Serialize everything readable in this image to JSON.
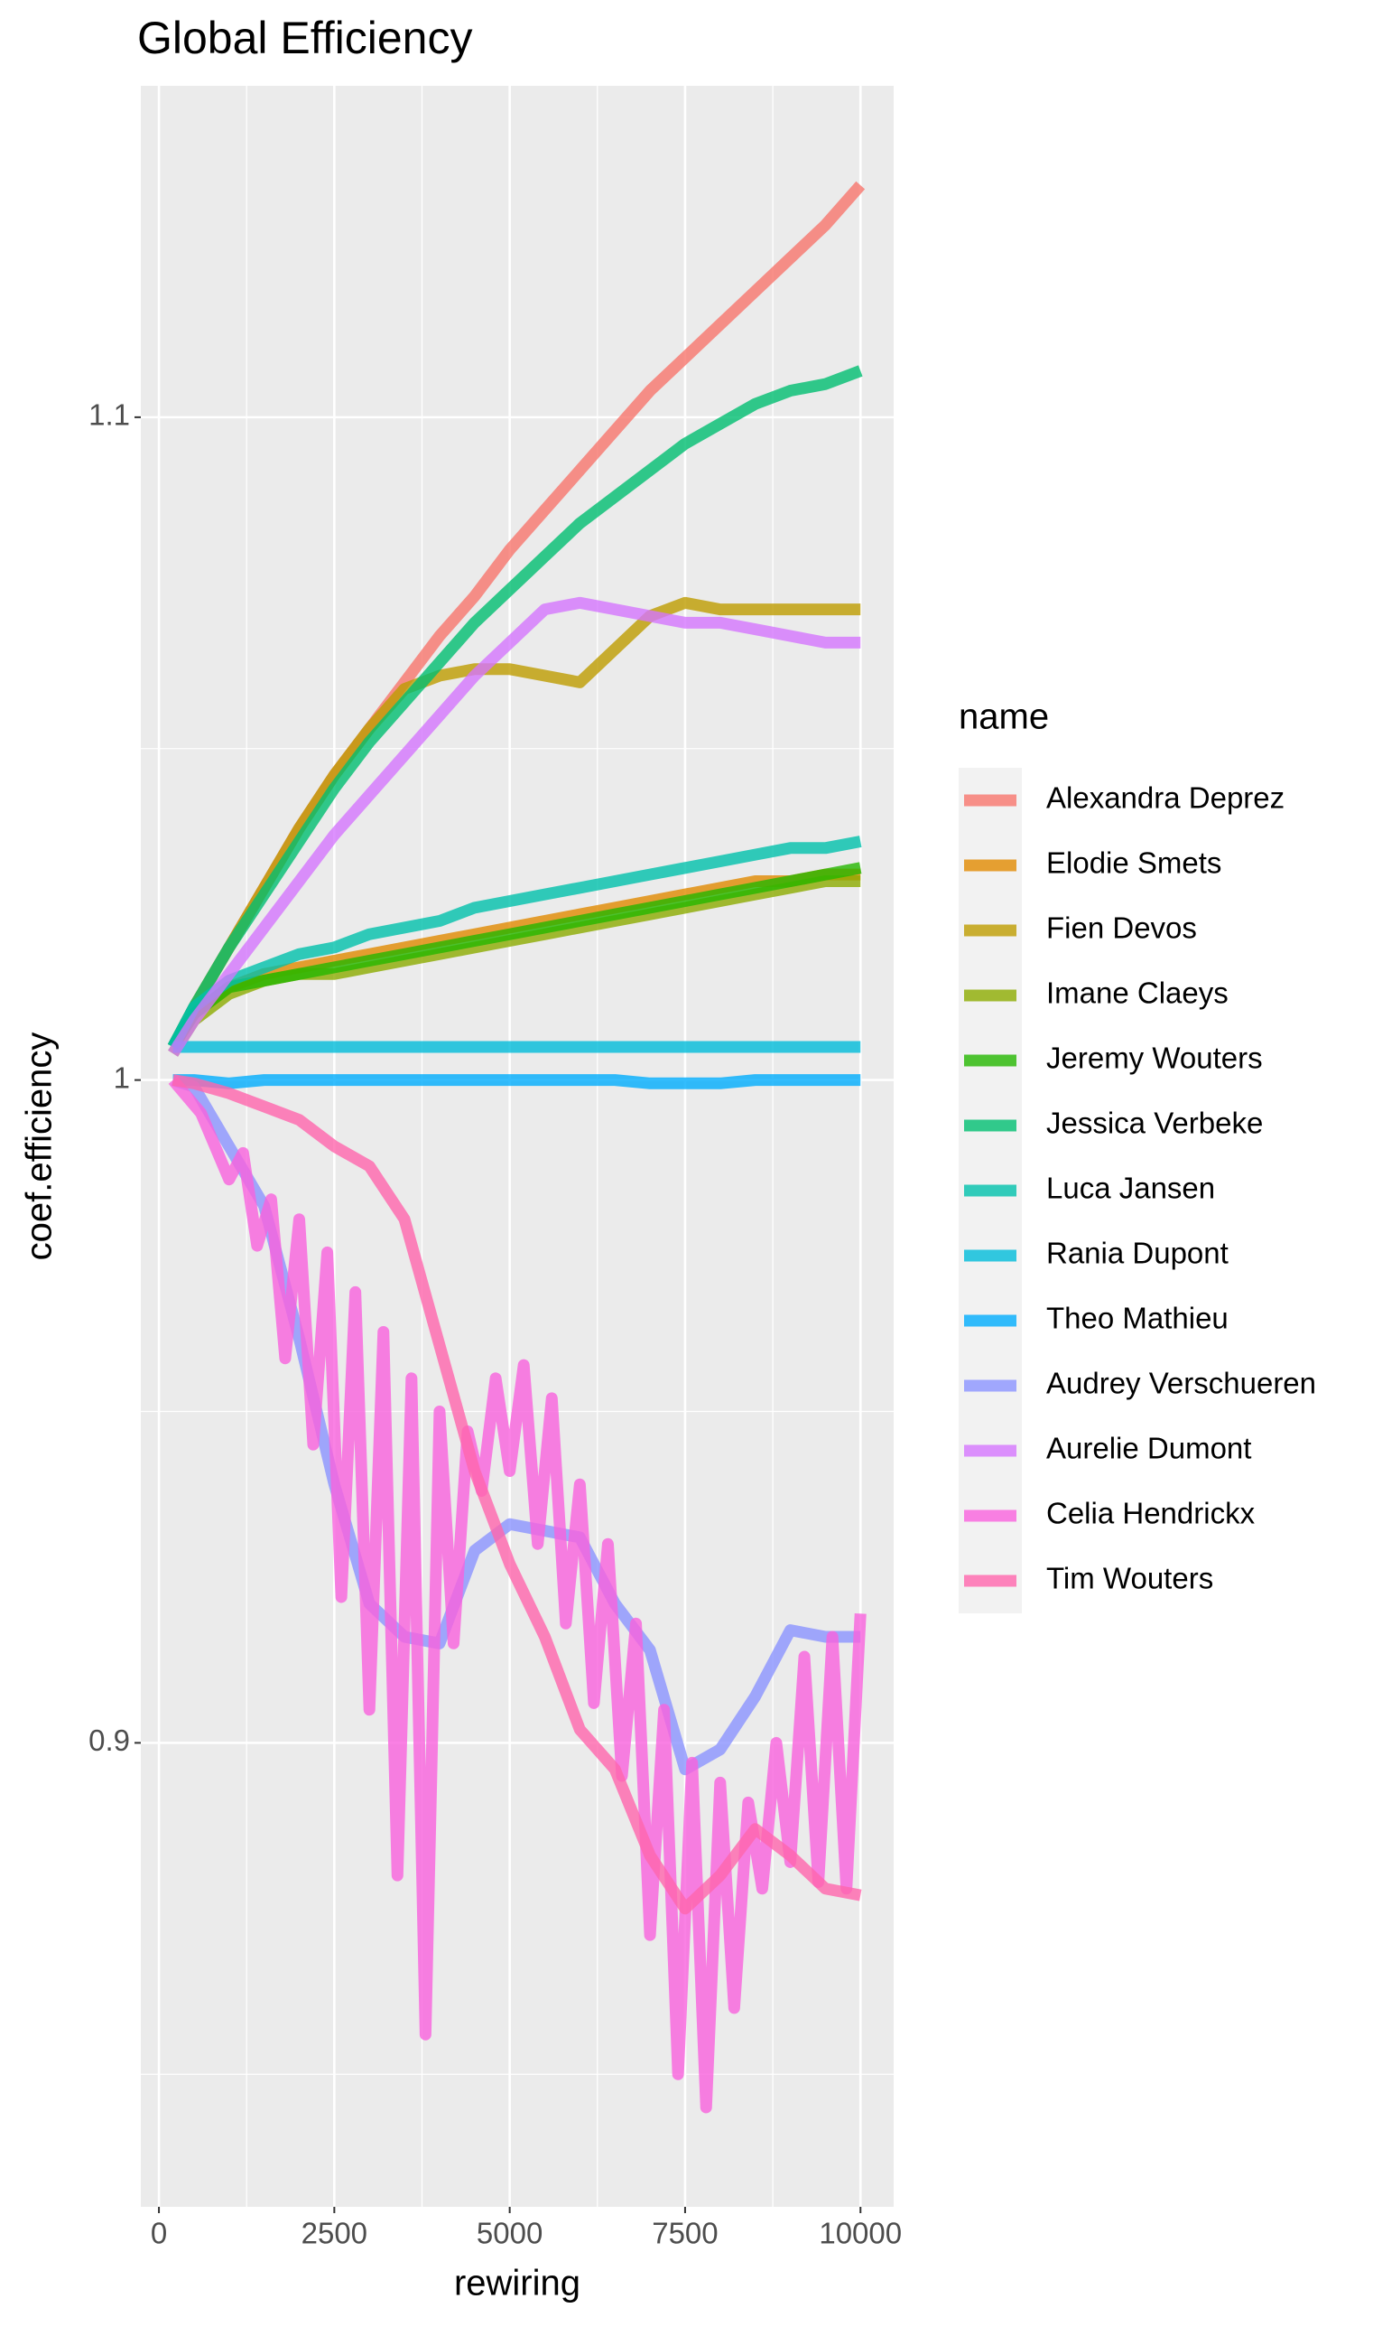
{
  "chart_data": {
    "type": "line",
    "title": "Global Efficiency",
    "x_label": "rewiring",
    "y_label": "coef.efficiency",
    "legend_title": "name",
    "legend": "right",
    "grid": true,
    "minor_grid": true,
    "xlim": [
      -258,
      10473
    ],
    "ylim": [
      0.83,
      1.15
    ],
    "xticks": [
      0,
      2500,
      5000,
      7500,
      10000
    ],
    "yticks": [
      0.9,
      1.0,
      1.1
    ],
    "x": [
      200,
      500,
      1000,
      1500,
      2000,
      2500,
      3000,
      3500,
      4000,
      4500,
      5000,
      5500,
      6000,
      6500,
      7000,
      7500,
      8000,
      8500,
      9000,
      9500,
      10000
    ],
    "series": [
      {
        "name": "Alexandra Deprez",
        "color": "#F8766D",
        "values": [
          1.005,
          1.011,
          1.02,
          1.029,
          1.038,
          1.046,
          1.053,
          1.06,
          1.067,
          1.073,
          1.08,
          1.086,
          1.092,
          1.098,
          1.104,
          1.109,
          1.114,
          1.119,
          1.124,
          1.129,
          1.135
        ]
      },
      {
        "name": "Elodie Smets",
        "color": "#E18A00",
        "values": [
          1.005,
          1.01,
          1.014,
          1.016,
          1.017,
          1.018,
          1.019,
          1.02,
          1.021,
          1.022,
          1.023,
          1.024,
          1.025,
          1.026,
          1.027,
          1.028,
          1.029,
          1.03,
          1.03,
          1.031,
          1.031
        ]
      },
      {
        "name": "Fien Devos",
        "color": "#BE9C00",
        "values": [
          1.005,
          1.011,
          1.02,
          1.029,
          1.038,
          1.046,
          1.053,
          1.059,
          1.061,
          1.062,
          1.062,
          1.061,
          1.06,
          1.065,
          1.07,
          1.072,
          1.071,
          1.071,
          1.071,
          1.071,
          1.071
        ]
      },
      {
        "name": "Imane Claeys",
        "color": "#8CAB00",
        "values": [
          1.004,
          1.009,
          1.013,
          1.015,
          1.016,
          1.016,
          1.017,
          1.018,
          1.019,
          1.02,
          1.021,
          1.022,
          1.023,
          1.024,
          1.025,
          1.026,
          1.027,
          1.028,
          1.029,
          1.03,
          1.03
        ]
      },
      {
        "name": "Jeremy Wouters",
        "color": "#24B700",
        "values": [
          1.005,
          1.01,
          1.014,
          1.015,
          1.016,
          1.017,
          1.018,
          1.019,
          1.02,
          1.021,
          1.022,
          1.023,
          1.024,
          1.025,
          1.026,
          1.027,
          1.028,
          1.029,
          1.03,
          1.031,
          1.032
        ]
      },
      {
        "name": "Jessica Verbeke",
        "color": "#00BE70",
        "values": [
          1.005,
          1.011,
          1.02,
          1.028,
          1.036,
          1.044,
          1.051,
          1.057,
          1.063,
          1.069,
          1.074,
          1.079,
          1.084,
          1.088,
          1.092,
          1.096,
          1.099,
          1.102,
          1.104,
          1.105,
          1.107
        ]
      },
      {
        "name": "Luca Jansen",
        "color": "#00C1AB",
        "values": [
          1.005,
          1.011,
          1.015,
          1.017,
          1.019,
          1.02,
          1.022,
          1.023,
          1.024,
          1.026,
          1.027,
          1.028,
          1.029,
          1.03,
          1.031,
          1.032,
          1.033,
          1.034,
          1.035,
          1.035,
          1.036
        ]
      },
      {
        "name": "Rania Dupont",
        "color": "#00BBDA",
        "values": [
          1.005,
          1.005,
          1.005,
          1.005,
          1.005,
          1.005,
          1.005,
          1.005,
          1.005,
          1.005,
          1.005,
          1.005,
          1.005,
          1.005,
          1.005,
          1.005,
          1.005,
          1.005,
          1.005,
          1.005,
          1.005
        ]
      },
      {
        "name": "Theo Mathieu",
        "color": "#00ACFC",
        "values": [
          1.0,
          1.0,
          0.9995,
          1.0,
          1.0,
          1.0,
          1.0,
          1.0,
          1.0,
          1.0,
          1.0,
          1.0,
          1.0,
          1.0,
          0.9995,
          0.9995,
          0.9995,
          1.0,
          1.0,
          1.0,
          1.0
        ]
      },
      {
        "name": "Audrey Verschueren",
        "color": "#8B93FF",
        "values": [
          1.0,
          0.999,
          0.99,
          0.981,
          0.961,
          0.939,
          0.921,
          0.916,
          0.915,
          0.929,
          0.933,
          0.932,
          0.931,
          0.921,
          0.914,
          0.896,
          0.899,
          0.907,
          0.917,
          0.916,
          0.916
        ]
      },
      {
        "name": "Aurelie Dumont",
        "color": "#D575FE",
        "values": [
          1.004,
          1.009,
          1.016,
          1.023,
          1.03,
          1.037,
          1.043,
          1.049,
          1.055,
          1.061,
          1.066,
          1.071,
          1.072,
          1.071,
          1.07,
          1.069,
          1.069,
          1.068,
          1.067,
          1.066,
          1.066
        ]
      },
      {
        "name": "Celia Hendrickx",
        "color": "#F962DD",
        "x": [
          200,
          600,
          1000,
          1200,
          1400,
          1600,
          1800,
          2000,
          2200,
          2400,
          2600,
          2800,
          3000,
          3200,
          3400,
          3600,
          3800,
          4000,
          4200,
          4400,
          4600,
          4800,
          5000,
          5200,
          5400,
          5600,
          5800,
          6000,
          6200,
          6400,
          6600,
          6800,
          7000,
          7200,
          7400,
          7600,
          7800,
          8000,
          8200,
          8400,
          8600,
          8800,
          9000,
          9200,
          9400,
          9600,
          9800,
          10000
        ],
        "values": [
          1.0,
          0.995,
          0.985,
          0.989,
          0.975,
          0.982,
          0.958,
          0.979,
          0.945,
          0.974,
          0.922,
          0.968,
          0.905,
          0.962,
          0.88,
          0.955,
          0.856,
          0.95,
          0.915,
          0.947,
          0.938,
          0.955,
          0.941,
          0.957,
          0.93,
          0.952,
          0.918,
          0.939,
          0.906,
          0.93,
          0.895,
          0.918,
          0.871,
          0.905,
          0.85,
          0.897,
          0.845,
          0.894,
          0.86,
          0.891,
          0.878,
          0.9,
          0.882,
          0.913,
          0.879,
          0.916,
          0.878,
          0.9195
        ]
      },
      {
        "name": "Tim Wouters",
        "color": "#FF65AC",
        "values": [
          1.0,
          0.9995,
          0.998,
          0.996,
          0.994,
          0.99,
          0.987,
          0.979,
          0.96,
          0.941,
          0.927,
          0.916,
          0.902,
          0.896,
          0.883,
          0.875,
          0.88,
          0.887,
          0.883,
          0.878,
          0.877
        ]
      }
    ]
  }
}
